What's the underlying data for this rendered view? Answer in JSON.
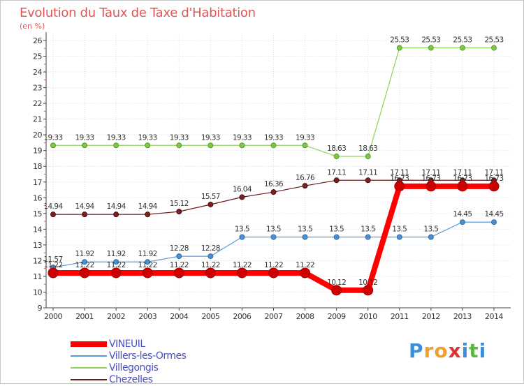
{
  "title": "Evolution du Taux de Taxe d'Habitation",
  "subtitle": "(en %)",
  "brand": {
    "letters": [
      "P",
      "r",
      "o",
      "x",
      "i",
      "t",
      "i"
    ],
    "colors": [
      "#3a8fd8",
      "#f0a030",
      "#f0a030",
      "#e23030",
      "#3a8fd8",
      "#5fb840",
      "#3a8fd8"
    ]
  },
  "chart_data": {
    "type": "line",
    "categories": [
      "2000",
      "2001",
      "2002",
      "2003",
      "2004",
      "2005",
      "2006",
      "2007",
      "2008",
      "2009",
      "2010",
      "2011",
      "2012",
      "2013",
      "2014"
    ],
    "ylim": [
      9,
      26
    ],
    "yticks": [
      9,
      10,
      11,
      12,
      13,
      14,
      15,
      16,
      17,
      18,
      19,
      20,
      21,
      22,
      23,
      24,
      25,
      26
    ],
    "grid": true,
    "legend_position": "bottom-left",
    "series": [
      {
        "name": "VINEUIL",
        "color": "#ff0000",
        "values": [
          11.22,
          11.22,
          11.22,
          11.22,
          11.22,
          11.22,
          11.22,
          11.22,
          11.22,
          10.12,
          10.12,
          16.73,
          16.73,
          16.73,
          16.73
        ],
        "labels": [
          "11.22",
          "11.22",
          "11.22",
          "11.22",
          "11.22",
          "11.22",
          "11.22",
          "11.22",
          "11.22",
          "10.12",
          "10.12",
          "16.73",
          "16.73",
          "16.73",
          "16.73"
        ]
      },
      {
        "name": "Villers-les-Ormes",
        "color": "#5b9bd5",
        "values": [
          11.57,
          11.92,
          11.92,
          11.92,
          12.28,
          12.28,
          13.5,
          13.5,
          13.5,
          13.5,
          13.5,
          13.5,
          13.5,
          14.45,
          14.45
        ],
        "labels": [
          "11.57",
          "11.92",
          "11.92",
          "11.92",
          "12.28",
          "12.28",
          "13.5",
          "13.5",
          "13.5",
          "13.5",
          "13.5",
          "13.5",
          "13.5",
          "14.45",
          "14.45"
        ]
      },
      {
        "name": "Villegongis",
        "color": "#8fd35a",
        "values": [
          19.33,
          19.33,
          19.33,
          19.33,
          19.33,
          19.33,
          19.33,
          19.33,
          19.33,
          18.63,
          18.63,
          25.53,
          25.53,
          25.53,
          25.53
        ],
        "labels": [
          "19.33",
          "19.33",
          "19.33",
          "19.33",
          "19.33",
          "19.33",
          "19.33",
          "19.33",
          "19.33",
          "18.63",
          "18.63",
          "25.53",
          "25.53",
          "25.53",
          "25.53"
        ]
      },
      {
        "name": "Chezelles",
        "color": "#6b1a1a",
        "values": [
          14.94,
          14.94,
          14.94,
          14.94,
          15.12,
          15.57,
          16.04,
          16.36,
          16.76,
          17.11,
          17.11,
          17.11,
          17.11,
          17.11,
          17.11
        ],
        "labels": [
          "14.94",
          "14.94",
          "14.94",
          "14.94",
          "15.12",
          "15.57",
          "16.04",
          "16.36",
          "16.76",
          "17.11",
          "17.11",
          "17.11",
          "17.11",
          "17.11",
          "17.11"
        ]
      }
    ]
  }
}
